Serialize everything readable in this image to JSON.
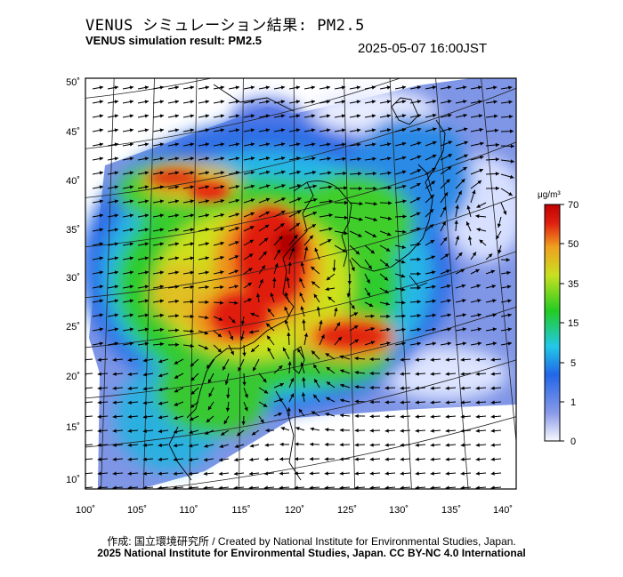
{
  "title_jp": "VENUS シミュレーション結果: PM2.5",
  "title_en": "VENUS simulation result: PM2.5",
  "timestamp": "2025-05-07 16:00JST",
  "map": {
    "lat_labels": [
      "50˚",
      "45˚",
      "40˚",
      "35˚",
      "30˚",
      "25˚",
      "20˚",
      "15˚",
      "10˚"
    ],
    "lon_labels": [
      "100˚",
      "105˚",
      "110˚",
      "115˚",
      "120˚",
      "125˚",
      "130˚",
      "135˚",
      "140˚"
    ],
    "lat_range": [
      10,
      50
    ],
    "lon_range": [
      100,
      140
    ]
  },
  "colorbar": {
    "unit": "μg/m³",
    "tick_labels": [
      "70",
      "50",
      "35",
      "15",
      "5",
      "1",
      "0"
    ],
    "colors": [
      "#f8f8ff",
      "#8899e8",
      "#2266e8",
      "#22c8e8",
      "#22cc22",
      "#c8e020",
      "#f0a020",
      "#e02010",
      "#c00000"
    ]
  },
  "credit_line1": "作成: 国立環境研究所 / Created by National Institute for Environmental Studies, Japan.",
  "credit_line2": "2025 National Institute for Environmental Studies, Japan. CC BY-NC 4.0 International"
}
